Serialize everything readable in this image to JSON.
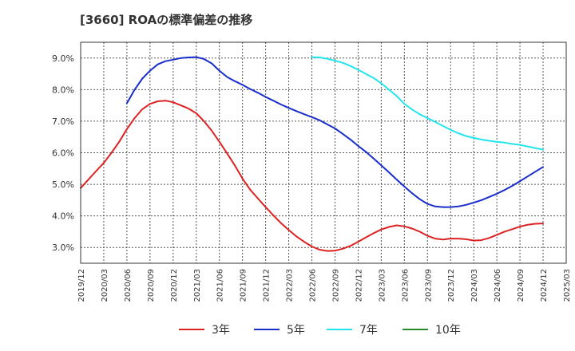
{
  "chart_data": {
    "type": "line",
    "title": "[3660]  ROAの標準偏差の推移",
    "xlabel": "",
    "ylabel": "",
    "ylim": [
      2.5,
      9.5
    ],
    "y_ticks": [
      3.0,
      4.0,
      5.0,
      6.0,
      7.0,
      8.0,
      9.0
    ],
    "y_tick_labels": [
      "3.0%",
      "4.0%",
      "5.0%",
      "6.0%",
      "7.0%",
      "8.0%",
      "9.0%"
    ],
    "x_tick_labels": [
      "2019/12",
      "2020/03",
      "2020/06",
      "2020/09",
      "2020/12",
      "2021/03",
      "2021/06",
      "2021/09",
      "2021/12",
      "2022/03",
      "2022/06",
      "2022/09",
      "2022/12",
      "2023/03",
      "2023/06",
      "2023/09",
      "2023/12",
      "2024/03",
      "2024/06",
      "2024/09",
      "2024/12",
      "2025/03"
    ],
    "grid": true,
    "legend_position": "bottom",
    "series": [
      {
        "name": "3年",
        "color": "#dd2222",
        "points": [
          [
            "2019/12",
            4.88
          ],
          [
            "2020/01",
            5.15
          ],
          [
            "2020/02",
            5.42
          ],
          [
            "2020/03",
            5.68
          ],
          [
            "2020/04",
            6.0
          ],
          [
            "2020/05",
            6.35
          ],
          [
            "2020/06",
            6.75
          ],
          [
            "2020/07",
            7.1
          ],
          [
            "2020/08",
            7.38
          ],
          [
            "2020/09",
            7.55
          ],
          [
            "2020/10",
            7.63
          ],
          [
            "2020/11",
            7.65
          ],
          [
            "2020/12",
            7.6
          ],
          [
            "2021/01",
            7.5
          ],
          [
            "2021/02",
            7.4
          ],
          [
            "2021/03",
            7.25
          ],
          [
            "2021/04",
            7.0
          ],
          [
            "2021/05",
            6.7
          ],
          [
            "2021/06",
            6.35
          ],
          [
            "2021/07",
            5.98
          ],
          [
            "2021/08",
            5.6
          ],
          [
            "2021/09",
            5.18
          ],
          [
            "2021/10",
            4.83
          ],
          [
            "2021/11",
            4.55
          ],
          [
            "2021/12",
            4.28
          ],
          [
            "2022/01",
            4.02
          ],
          [
            "2022/02",
            3.77
          ],
          [
            "2022/03",
            3.55
          ],
          [
            "2022/04",
            3.35
          ],
          [
            "2022/05",
            3.18
          ],
          [
            "2022/06",
            3.03
          ],
          [
            "2022/07",
            2.93
          ],
          [
            "2022/08",
            2.89
          ],
          [
            "2022/09",
            2.9
          ],
          [
            "2022/10",
            2.96
          ],
          [
            "2022/11",
            3.05
          ],
          [
            "2022/12",
            3.18
          ],
          [
            "2023/01",
            3.32
          ],
          [
            "2023/02",
            3.45
          ],
          [
            "2023/03",
            3.57
          ],
          [
            "2023/04",
            3.65
          ],
          [
            "2023/05",
            3.7
          ],
          [
            "2023/06",
            3.67
          ],
          [
            "2023/07",
            3.6
          ],
          [
            "2023/08",
            3.5
          ],
          [
            "2023/09",
            3.37
          ],
          [
            "2023/10",
            3.28
          ],
          [
            "2023/11",
            3.25
          ],
          [
            "2023/12",
            3.28
          ],
          [
            "2024/01",
            3.28
          ],
          [
            "2024/02",
            3.26
          ],
          [
            "2024/03",
            3.22
          ],
          [
            "2024/04",
            3.23
          ],
          [
            "2024/05",
            3.3
          ],
          [
            "2024/06",
            3.4
          ],
          [
            "2024/07",
            3.5
          ],
          [
            "2024/08",
            3.58
          ],
          [
            "2024/09",
            3.66
          ],
          [
            "2024/10",
            3.72
          ],
          [
            "2024/11",
            3.75
          ],
          [
            "2024/12",
            3.76
          ]
        ]
      },
      {
        "name": "5年",
        "color": "#1a2ecc",
        "points": [
          [
            "2020/06",
            7.57
          ],
          [
            "2020/07",
            8.0
          ],
          [
            "2020/08",
            8.35
          ],
          [
            "2020/09",
            8.6
          ],
          [
            "2020/10",
            8.8
          ],
          [
            "2020/11",
            8.9
          ],
          [
            "2020/12",
            8.95
          ],
          [
            "2021/01",
            9.0
          ],
          [
            "2021/02",
            9.02
          ],
          [
            "2021/03",
            9.03
          ],
          [
            "2021/04",
            8.97
          ],
          [
            "2021/05",
            8.83
          ],
          [
            "2021/06",
            8.6
          ],
          [
            "2021/07",
            8.4
          ],
          [
            "2021/08",
            8.27
          ],
          [
            "2021/09",
            8.15
          ],
          [
            "2021/10",
            8.02
          ],
          [
            "2021/11",
            7.9
          ],
          [
            "2021/12",
            7.77
          ],
          [
            "2022/01",
            7.65
          ],
          [
            "2022/02",
            7.53
          ],
          [
            "2022/03",
            7.42
          ],
          [
            "2022/04",
            7.32
          ],
          [
            "2022/05",
            7.22
          ],
          [
            "2022/06",
            7.13
          ],
          [
            "2022/07",
            7.03
          ],
          [
            "2022/08",
            6.9
          ],
          [
            "2022/09",
            6.77
          ],
          [
            "2022/10",
            6.6
          ],
          [
            "2022/11",
            6.42
          ],
          [
            "2022/12",
            6.22
          ],
          [
            "2023/01",
            6.03
          ],
          [
            "2023/02",
            5.82
          ],
          [
            "2023/03",
            5.6
          ],
          [
            "2023/04",
            5.38
          ],
          [
            "2023/05",
            5.15
          ],
          [
            "2023/06",
            4.93
          ],
          [
            "2023/07",
            4.72
          ],
          [
            "2023/08",
            4.53
          ],
          [
            "2023/09",
            4.38
          ],
          [
            "2023/10",
            4.3
          ],
          [
            "2023/11",
            4.28
          ],
          [
            "2023/12",
            4.28
          ],
          [
            "2024/01",
            4.3
          ],
          [
            "2024/02",
            4.35
          ],
          [
            "2024/03",
            4.42
          ],
          [
            "2024/04",
            4.5
          ],
          [
            "2024/05",
            4.6
          ],
          [
            "2024/06",
            4.7
          ],
          [
            "2024/07",
            4.82
          ],
          [
            "2024/08",
            4.95
          ],
          [
            "2024/09",
            5.1
          ],
          [
            "2024/10",
            5.25
          ],
          [
            "2024/11",
            5.4
          ],
          [
            "2024/12",
            5.55
          ]
        ]
      },
      {
        "name": "7年",
        "color": "#22e5ee",
        "points": [
          [
            "2022/06",
            9.03
          ],
          [
            "2022/07",
            9.02
          ],
          [
            "2022/08",
            8.98
          ],
          [
            "2022/09",
            8.92
          ],
          [
            "2022/10",
            8.85
          ],
          [
            "2022/11",
            8.75
          ],
          [
            "2022/12",
            8.63
          ],
          [
            "2023/01",
            8.5
          ],
          [
            "2023/02",
            8.37
          ],
          [
            "2023/03",
            8.2
          ],
          [
            "2023/04",
            8.0
          ],
          [
            "2023/05",
            7.8
          ],
          [
            "2023/06",
            7.55
          ],
          [
            "2023/07",
            7.37
          ],
          [
            "2023/08",
            7.22
          ],
          [
            "2023/09",
            7.1
          ],
          [
            "2023/10",
            6.98
          ],
          [
            "2023/11",
            6.85
          ],
          [
            "2023/12",
            6.73
          ],
          [
            "2024/01",
            6.62
          ],
          [
            "2024/02",
            6.53
          ],
          [
            "2024/03",
            6.47
          ],
          [
            "2024/04",
            6.42
          ],
          [
            "2024/05",
            6.38
          ],
          [
            "2024/06",
            6.35
          ],
          [
            "2024/07",
            6.32
          ],
          [
            "2024/08",
            6.28
          ],
          [
            "2024/09",
            6.25
          ],
          [
            "2024/10",
            6.2
          ],
          [
            "2024/11",
            6.15
          ],
          [
            "2024/12",
            6.1
          ]
        ]
      },
      {
        "name": "10年",
        "color": "#2a8a2a",
        "points": []
      }
    ]
  }
}
